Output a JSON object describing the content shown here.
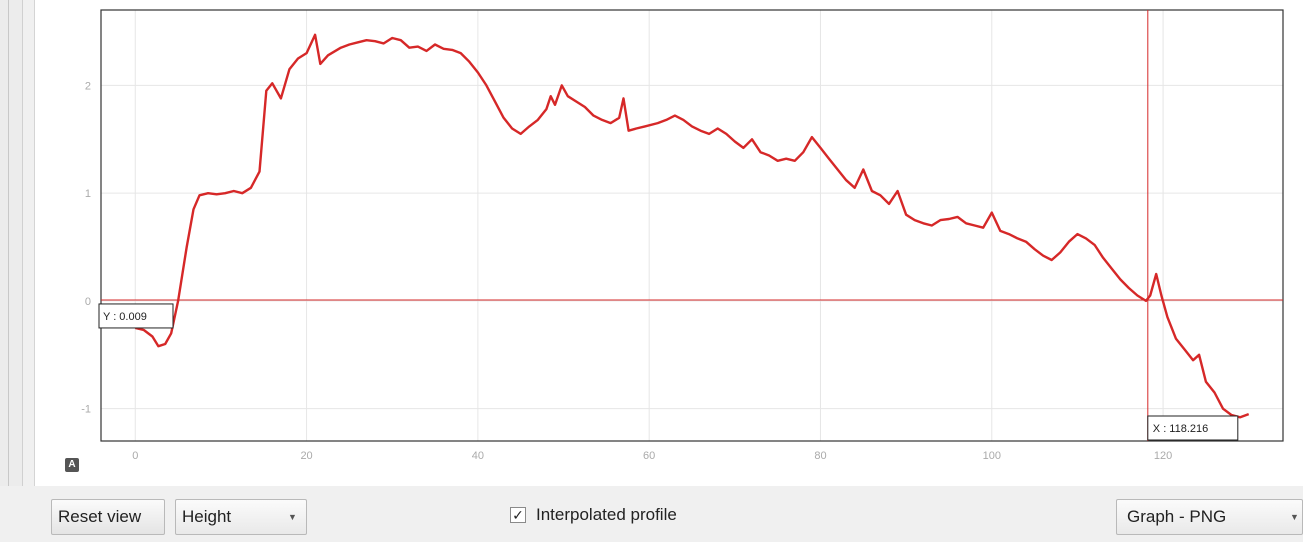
{
  "chart_data": {
    "type": "line",
    "title": "",
    "xlabel": "",
    "ylabel": "",
    "xlim": [
      -4,
      134
    ],
    "ylim": [
      -1.3,
      2.7
    ],
    "x_ticks": [
      "0",
      "20",
      "40",
      "60",
      "80",
      "100",
      "120"
    ],
    "y_ticks": [
      "2",
      "1",
      "0",
      "-1"
    ],
    "grid": true,
    "series": [
      {
        "color": "#d62828",
        "points": [
          [
            0,
            -0.25
          ],
          [
            1,
            -0.27
          ],
          [
            2,
            -0.33
          ],
          [
            2.7,
            -0.42
          ],
          [
            3.5,
            -0.4
          ],
          [
            4.2,
            -0.3
          ],
          [
            5,
            0.0
          ],
          [
            6,
            0.5
          ],
          [
            6.8,
            0.85
          ],
          [
            7.5,
            0.98
          ],
          [
            8.5,
            1.0
          ],
          [
            9.5,
            0.99
          ],
          [
            10.5,
            1.0
          ],
          [
            11.5,
            1.02
          ],
          [
            12.5,
            1.0
          ],
          [
            13.5,
            1.05
          ],
          [
            14.5,
            1.2
          ],
          [
            15.3,
            1.95
          ],
          [
            16,
            2.02
          ],
          [
            17,
            1.88
          ],
          [
            18,
            2.15
          ],
          [
            19,
            2.25
          ],
          [
            20,
            2.3
          ],
          [
            21,
            2.47
          ],
          [
            21.6,
            2.2
          ],
          [
            22.5,
            2.28
          ],
          [
            24,
            2.35
          ],
          [
            25,
            2.38
          ],
          [
            26,
            2.4
          ],
          [
            27,
            2.42
          ],
          [
            28,
            2.41
          ],
          [
            29,
            2.39
          ],
          [
            30,
            2.44
          ],
          [
            31,
            2.42
          ],
          [
            32,
            2.35
          ],
          [
            33,
            2.36
          ],
          [
            34,
            2.32
          ],
          [
            35,
            2.38
          ],
          [
            36,
            2.34
          ],
          [
            37,
            2.33
          ],
          [
            38,
            2.3
          ],
          [
            39,
            2.22
          ],
          [
            40,
            2.12
          ],
          [
            41,
            2.0
          ],
          [
            42,
            1.85
          ],
          [
            43,
            1.7
          ],
          [
            44,
            1.6
          ],
          [
            45,
            1.55
          ],
          [
            46,
            1.62
          ],
          [
            47,
            1.68
          ],
          [
            48,
            1.78
          ],
          [
            48.5,
            1.9
          ],
          [
            49,
            1.82
          ],
          [
            49.8,
            2.0
          ],
          [
            50.5,
            1.9
          ],
          [
            51.5,
            1.85
          ],
          [
            52.5,
            1.8
          ],
          [
            53.5,
            1.72
          ],
          [
            54.5,
            1.68
          ],
          [
            55.5,
            1.65
          ],
          [
            56.5,
            1.7
          ],
          [
            57,
            1.88
          ],
          [
            57.6,
            1.58
          ],
          [
            58.5,
            1.6
          ],
          [
            59.5,
            1.62
          ],
          [
            61,
            1.65
          ],
          [
            62,
            1.68
          ],
          [
            63,
            1.72
          ],
          [
            64,
            1.68
          ],
          [
            65,
            1.62
          ],
          [
            66,
            1.58
          ],
          [
            67,
            1.55
          ],
          [
            68,
            1.6
          ],
          [
            69,
            1.55
          ],
          [
            70,
            1.48
          ],
          [
            71,
            1.42
          ],
          [
            72,
            1.5
          ],
          [
            73,
            1.38
          ],
          [
            74,
            1.35
          ],
          [
            75,
            1.3
          ],
          [
            76,
            1.32
          ],
          [
            77,
            1.3
          ],
          [
            78,
            1.38
          ],
          [
            79,
            1.52
          ],
          [
            80,
            1.42
          ],
          [
            81,
            1.32
          ],
          [
            82,
            1.22
          ],
          [
            83,
            1.12
          ],
          [
            84,
            1.05
          ],
          [
            85,
            1.22
          ],
          [
            86,
            1.02
          ],
          [
            87,
            0.98
          ],
          [
            88,
            0.9
          ],
          [
            89,
            1.02
          ],
          [
            90,
            0.8
          ],
          [
            91,
            0.75
          ],
          [
            92,
            0.72
          ],
          [
            93,
            0.7
          ],
          [
            94,
            0.75
          ],
          [
            95,
            0.76
          ],
          [
            96,
            0.78
          ],
          [
            97,
            0.72
          ],
          [
            98,
            0.7
          ],
          [
            99,
            0.68
          ],
          [
            100,
            0.82
          ],
          [
            101,
            0.65
          ],
          [
            102,
            0.62
          ],
          [
            103,
            0.58
          ],
          [
            104,
            0.55
          ],
          [
            105,
            0.48
          ],
          [
            106,
            0.42
          ],
          [
            107,
            0.38
          ],
          [
            108,
            0.45
          ],
          [
            109,
            0.55
          ],
          [
            110,
            0.62
          ],
          [
            111,
            0.58
          ],
          [
            112,
            0.52
          ],
          [
            113,
            0.4
          ],
          [
            114,
            0.3
          ],
          [
            115,
            0.2
          ],
          [
            116,
            0.12
          ],
          [
            117,
            0.05
          ],
          [
            118,
            0.0
          ],
          [
            118.5,
            0.05
          ],
          [
            119.2,
            0.25
          ],
          [
            119.8,
            0.05
          ],
          [
            120.5,
            -0.15
          ],
          [
            121.5,
            -0.35
          ],
          [
            122.5,
            -0.45
          ],
          [
            123.5,
            -0.55
          ],
          [
            124.2,
            -0.5
          ],
          [
            125,
            -0.75
          ],
          [
            126,
            -0.85
          ],
          [
            127,
            -1.0
          ],
          [
            128,
            -1.06
          ],
          [
            129,
            -1.08
          ],
          [
            130,
            -1.05
          ]
        ]
      }
    ],
    "crosshair": {
      "x": 118.216,
      "y": 0.009,
      "x_label": "X : 118.216",
      "y_label": "Y : 0.009"
    }
  },
  "controls": {
    "reset_label": "Reset view",
    "mode_value": "Height",
    "interpolated_label": "Interpolated profile",
    "interpolated_checked": "✓",
    "export_value": "Graph - PNG",
    "caret": "▼",
    "plot_badge": "A"
  }
}
